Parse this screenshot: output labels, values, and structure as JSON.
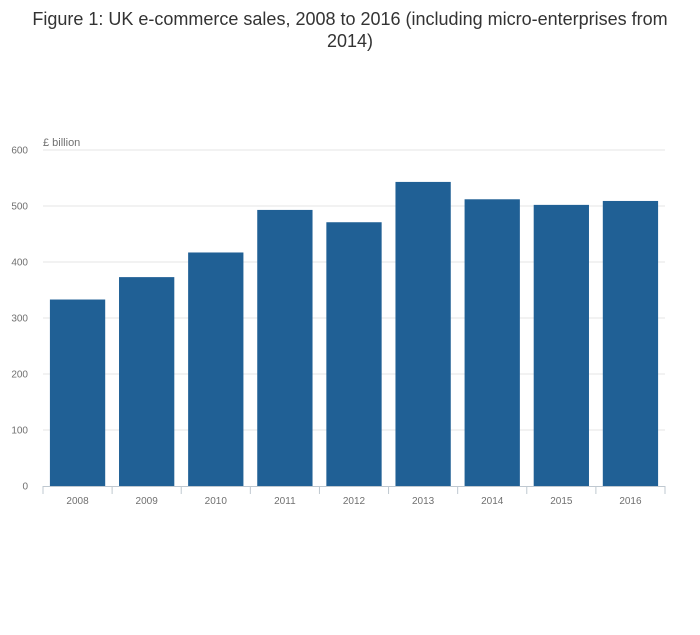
{
  "chart_data": {
    "type": "bar",
    "title": "Figure 1: UK e-commerce sales, 2008 to 2016 (including micro-enterprises from 2014)",
    "ylabel": "£ billion",
    "xlabel": "",
    "categories": [
      "2008",
      "2009",
      "2010",
      "2011",
      "2012",
      "2013",
      "2014",
      "2015",
      "2016"
    ],
    "values": [
      333,
      373,
      417,
      493,
      471,
      543,
      512,
      502,
      509
    ],
    "ylim": [
      0,
      600
    ],
    "yticks": [
      0,
      100,
      200,
      300,
      400,
      500,
      600
    ],
    "grid": true,
    "bar_color": "#206095"
  }
}
